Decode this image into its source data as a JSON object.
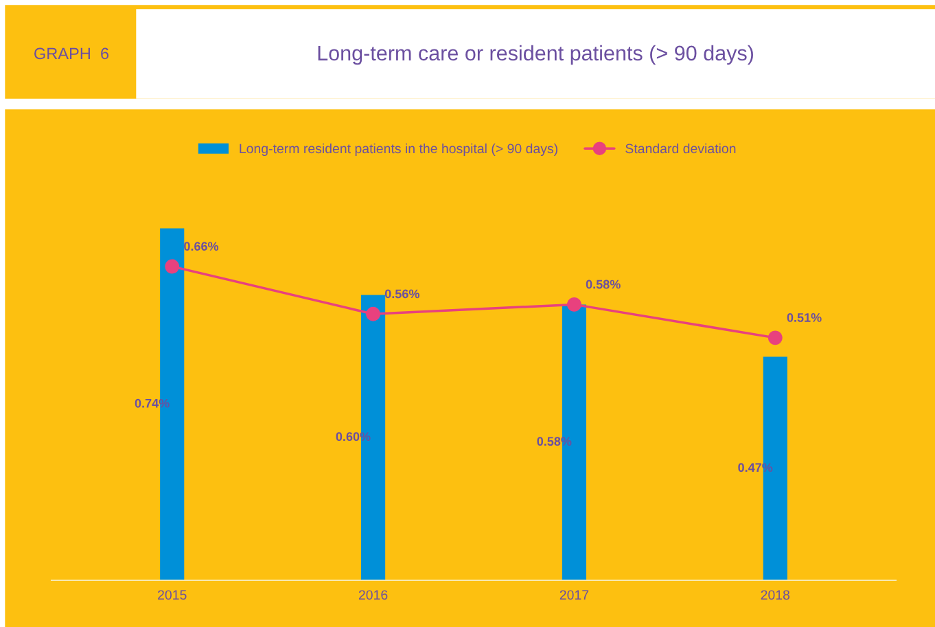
{
  "chart_data": {
    "type": "bar",
    "title": "Long-term care or resident patients (> 90 days)",
    "annotations": [
      "GRAPH  6"
    ],
    "categories": [
      "2015",
      "2016",
      "2017",
      "2018"
    ],
    "series": [
      {
        "name": "Long-term resident patients in the hospital (> 90 days)",
        "color": "#0090d8",
        "values": [
          0.74,
          0.6,
          0.58,
          0.47
        ],
        "value_labels": [
          "0.74%",
          "0.60%",
          "0.58%",
          "0.47%"
        ]
      },
      {
        "name": "Standard deviation",
        "type": "line",
        "color": "#e8417e",
        "marker": "circle",
        "values": [
          0.66,
          0.56,
          0.58,
          0.51
        ],
        "value_labels": [
          "0.66%",
          "0.56%",
          "0.58%",
          "0.51%"
        ]
      }
    ],
    "tick_labels": "x",
    "grid": false,
    "legend": "top"
  }
}
